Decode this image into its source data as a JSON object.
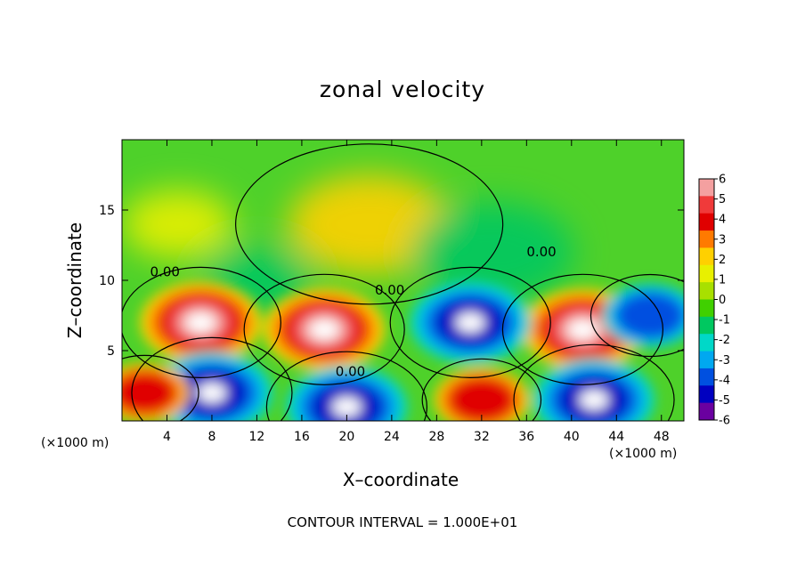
{
  "chart_data": {
    "type": "heatmap",
    "title": "zonal velocity",
    "xlabel": "X–coordinate",
    "ylabel": "Z–coordinate",
    "x_unit": "(×1000 m)",
    "x_ticks": [
      4,
      8,
      12,
      16,
      20,
      24,
      28,
      32,
      36,
      40,
      44,
      48
    ],
    "y_ticks": [
      5,
      10,
      15
    ],
    "xlim": [
      0,
      50
    ],
    "ylim": [
      0,
      20
    ],
    "colorbar": {
      "ticks": [
        6,
        5,
        4,
        3,
        2,
        1,
        0,
        -1,
        -2,
        -3,
        -4,
        -5,
        -6
      ],
      "range": [
        -6,
        6
      ],
      "colors": [
        "#f4a0a0",
        "#f03a3a",
        "#e00000",
        "#ff7a00",
        "#ffd000",
        "#e8f000",
        "#a8e000",
        "#40d000",
        "#00c860",
        "#00d8c8",
        "#00a8f0",
        "#0050e0",
        "#0000c0",
        "#6a00a0"
      ]
    },
    "contour_labels": [
      "0.00",
      "0.00",
      "0.00",
      "0.00"
    ],
    "contour_interval_text": "CONTOUR INTERVAL = 1.000E+01",
    "features": [
      {
        "x": 7,
        "z": 7,
        "value": 7
      },
      {
        "x": 18,
        "z": 6.5,
        "value": 7
      },
      {
        "x": 41,
        "z": 6.5,
        "value": 7
      },
      {
        "x": 22,
        "z": 14,
        "value": 1.8
      },
      {
        "x": 5,
        "z": 14,
        "value": 1.2
      },
      {
        "x": 31,
        "z": 7,
        "value": -7
      },
      {
        "x": 8,
        "z": 2,
        "value": -7
      },
      {
        "x": 20,
        "z": 1,
        "value": -7
      },
      {
        "x": 42,
        "z": 1.5,
        "value": -7
      },
      {
        "x": 32,
        "z": 1.5,
        "value": 4
      },
      {
        "x": 2,
        "z": 2,
        "value": 3.5
      },
      {
        "x": 47,
        "z": 7.5,
        "value": -4
      },
      {
        "x": 33,
        "z": 12,
        "value": -1.5
      },
      {
        "x": 12,
        "z": 10,
        "value": -1.2
      }
    ]
  },
  "text": {
    "title": "zonal velocity",
    "xlabel": "X–coordinate",
    "ylabel": "Z–coordinate",
    "x_unit_left": "(×1000 m)",
    "x_unit_right": "(×1000 m)",
    "contour_note": "CONTOUR INTERVAL = 1.000E+01"
  }
}
